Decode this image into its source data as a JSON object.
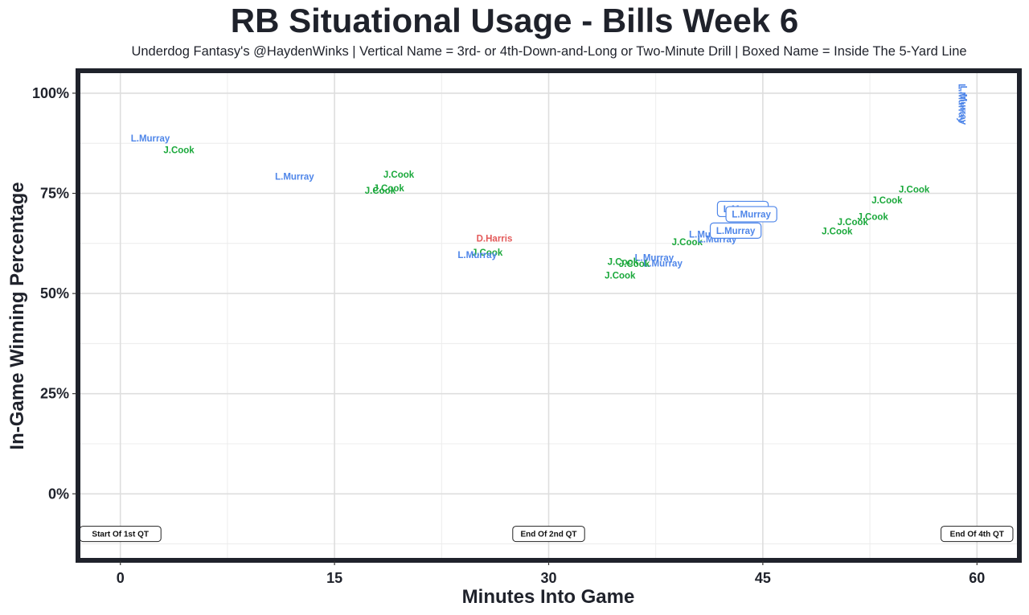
{
  "chart_data": {
    "type": "scatter",
    "title": "RB Situational Usage - Bills Week 6",
    "subtitle": "Underdog Fantasy's @HaydenWinks | Vertical Name = 3rd- or 4th-Down-and-Long or Two-Minute Drill | Boxed Name = Inside The 5-Yard Line",
    "xlabel": "Minutes Into Game",
    "ylabel": "In-Game Winning Percentage",
    "xlim": [
      -2.8,
      62.8
    ],
    "ylim": [
      -0.16,
      1.05
    ],
    "x_ticks": [
      0,
      15,
      30,
      45,
      60
    ],
    "x_tick_labels": [
      "0",
      "15",
      "30",
      "45",
      "60"
    ],
    "y_ticks": [
      0,
      0.25,
      0.5,
      0.75,
      1.0
    ],
    "y_tick_labels": [
      "0%",
      "25%",
      "50%",
      "75%",
      "100%"
    ],
    "grid": true,
    "colors": {
      "L.Murray": "#4f86e9",
      "J.Cook": "#1aa83b",
      "D.Harris": "#e35a5a"
    },
    "points": [
      {
        "player": "L.Murray",
        "x": 2.1,
        "y": 0.887,
        "style": "normal"
      },
      {
        "player": "J.Cook",
        "x": 4.1,
        "y": 0.858,
        "style": "normal"
      },
      {
        "player": "L.Murray",
        "x": 12.2,
        "y": 0.792,
        "style": "normal"
      },
      {
        "player": "J.Cook",
        "x": 19.5,
        "y": 0.797,
        "style": "normal"
      },
      {
        "player": "J.Cook",
        "x": 18.8,
        "y": 0.763,
        "style": "normal"
      },
      {
        "player": "J.Cook",
        "x": 18.2,
        "y": 0.757,
        "style": "normal"
      },
      {
        "player": "D.Harris",
        "x": 26.2,
        "y": 0.638,
        "style": "normal"
      },
      {
        "player": "J.Cook",
        "x": 25.7,
        "y": 0.603,
        "style": "normal"
      },
      {
        "player": "L.Murray",
        "x": 25.0,
        "y": 0.596,
        "style": "normal"
      },
      {
        "player": "L.Murray",
        "x": 37.4,
        "y": 0.589,
        "style": "normal"
      },
      {
        "player": "J.Cook",
        "x": 35.2,
        "y": 0.579,
        "style": "normal"
      },
      {
        "player": "L.Murray",
        "x": 38.0,
        "y": 0.575,
        "style": "normal"
      },
      {
        "player": "J.Cook",
        "x": 36.0,
        "y": 0.574,
        "style": "normal"
      },
      {
        "player": "J.Cook",
        "x": 35.0,
        "y": 0.545,
        "style": "normal"
      },
      {
        "player": "J.Cook",
        "x": 39.7,
        "y": 0.629,
        "style": "normal"
      },
      {
        "player": "L.Murray",
        "x": 41.2,
        "y": 0.648,
        "style": "normal"
      },
      {
        "player": "L.Murray",
        "x": 41.8,
        "y": 0.636,
        "style": "normal"
      },
      {
        "player": "L.Murray",
        "x": 43.6,
        "y": 0.711,
        "style": "boxed"
      },
      {
        "player": "L.Murray",
        "x": 44.2,
        "y": 0.698,
        "style": "boxed"
      },
      {
        "player": "L.Murray",
        "x": 43.1,
        "y": 0.657,
        "style": "boxed"
      },
      {
        "player": "J.Cook",
        "x": 50.2,
        "y": 0.656,
        "style": "normal"
      },
      {
        "player": "J.Cook",
        "x": 51.3,
        "y": 0.679,
        "style": "normal"
      },
      {
        "player": "J.Cook",
        "x": 52.7,
        "y": 0.692,
        "style": "normal"
      },
      {
        "player": "J.Cook",
        "x": 53.7,
        "y": 0.733,
        "style": "normal"
      },
      {
        "player": "J.Cook",
        "x": 55.6,
        "y": 0.76,
        "style": "normal"
      },
      {
        "player": "L.Murray",
        "x": 58.5,
        "y": 0.975,
        "style": "vertical"
      },
      {
        "player": "L.Murray",
        "x": 58.6,
        "y": 0.97,
        "style": "vertical"
      }
    ],
    "markers": [
      {
        "label": "Start Of 1st QT",
        "x": 0
      },
      {
        "label": "End Of 2nd QT",
        "x": 30
      },
      {
        "label": "End Of 4th QT",
        "x": 60
      }
    ],
    "marker_y": -0.1
  }
}
